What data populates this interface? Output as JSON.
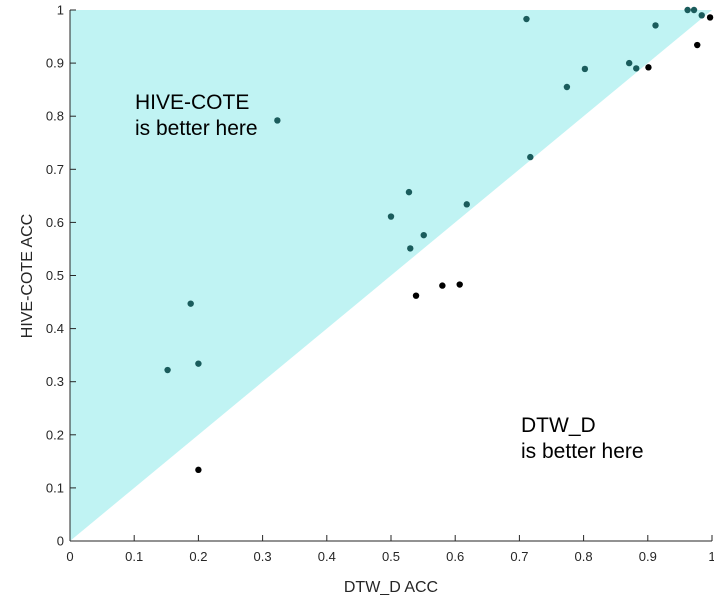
{
  "chart_data": {
    "type": "scatter",
    "title": "",
    "xlabel": "DTW_D ACC",
    "ylabel": "HIVE-COTE ACC",
    "xlim": [
      0,
      1
    ],
    "ylim": [
      0,
      1
    ],
    "xticks": [
      "0",
      "0.1",
      "0.2",
      "0.3",
      "0.4",
      "0.5",
      "0.6",
      "0.7",
      "0.8",
      "0.9",
      "1"
    ],
    "yticks": [
      "0",
      "0.1",
      "0.2",
      "0.3",
      "0.4",
      "0.5",
      "0.6",
      "0.7",
      "0.8",
      "0.9",
      "1"
    ],
    "grid": false,
    "legend": null,
    "region_color": "#c0f3f3",
    "point_color_above": "#1a5c5c",
    "point_color_below": "#000000",
    "annotations": [
      {
        "lines": [
          "HIVE-COTE",
          "is better here"
        ]
      },
      {
        "lines": [
          "DTW_D",
          "is better here"
        ]
      }
    ],
    "points": [
      {
        "x": 0.152,
        "y": 0.322
      },
      {
        "x": 0.188,
        "y": 0.447
      },
      {
        "x": 0.2,
        "y": 0.334
      },
      {
        "x": 0.2,
        "y": 0.134
      },
      {
        "x": 0.323,
        "y": 0.792
      },
      {
        "x": 0.5,
        "y": 0.611
      },
      {
        "x": 0.528,
        "y": 0.657
      },
      {
        "x": 0.53,
        "y": 0.551
      },
      {
        "x": 0.539,
        "y": 0.462
      },
      {
        "x": 0.551,
        "y": 0.576
      },
      {
        "x": 0.58,
        "y": 0.481
      },
      {
        "x": 0.607,
        "y": 0.483
      },
      {
        "x": 0.618,
        "y": 0.634
      },
      {
        "x": 0.711,
        "y": 0.983
      },
      {
        "x": 0.717,
        "y": 0.723
      },
      {
        "x": 0.774,
        "y": 0.855
      },
      {
        "x": 0.802,
        "y": 0.889
      },
      {
        "x": 0.871,
        "y": 0.9
      },
      {
        "x": 0.882,
        "y": 0.89
      },
      {
        "x": 0.901,
        "y": 0.892
      },
      {
        "x": 0.912,
        "y": 0.971
      },
      {
        "x": 0.962,
        "y": 1.0
      },
      {
        "x": 0.972,
        "y": 1.0
      },
      {
        "x": 0.977,
        "y": 0.934
      },
      {
        "x": 0.984,
        "y": 0.99
      },
      {
        "x": 0.997,
        "y": 0.986
      }
    ]
  }
}
